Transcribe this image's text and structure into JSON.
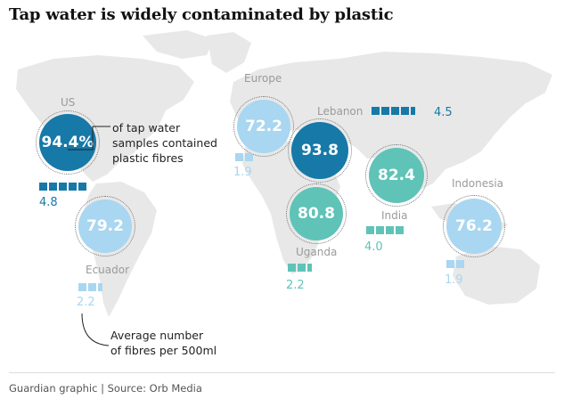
{
  "title": "Tap water is widely contaminated by plastic",
  "annotation_top": [
    "of tap water",
    "samples contained",
    "plastic fibres"
  ],
  "annotation_bottom": [
    "Average number",
    "of fibres per 500ml"
  ],
  "footer": "Guardian graphic | Source: Orb Media",
  "colors": {
    "dark_blue": "#1679a8",
    "teal": "#5fc3b7",
    "light_blue": "#a9d6f0",
    "map": "#e9e9e9"
  },
  "locations": [
    {
      "name": "US",
      "percent": "94.4%",
      "fibres": "4.8",
      "fibre_count": 4.8
    },
    {
      "name": "Ecuador",
      "percent": "79.2",
      "fibres": "2.2",
      "fibre_count": 2.2
    },
    {
      "name": "Europe",
      "percent": "72.2",
      "fibres": "1.9",
      "fibre_count": 1.9
    },
    {
      "name": "Lebanon",
      "percent": "93.8",
      "fibres": "4.5",
      "fibre_count": 4.5
    },
    {
      "name": "Uganda",
      "percent": "80.8",
      "fibres": "2.2",
      "fibre_count": 2.2
    },
    {
      "name": "India",
      "percent": "82.4",
      "fibres": "4.0",
      "fibre_count": 4.0
    },
    {
      "name": "Indonesia",
      "percent": "76.2",
      "fibres": "1.9",
      "fibre_count": 1.9
    }
  ]
}
